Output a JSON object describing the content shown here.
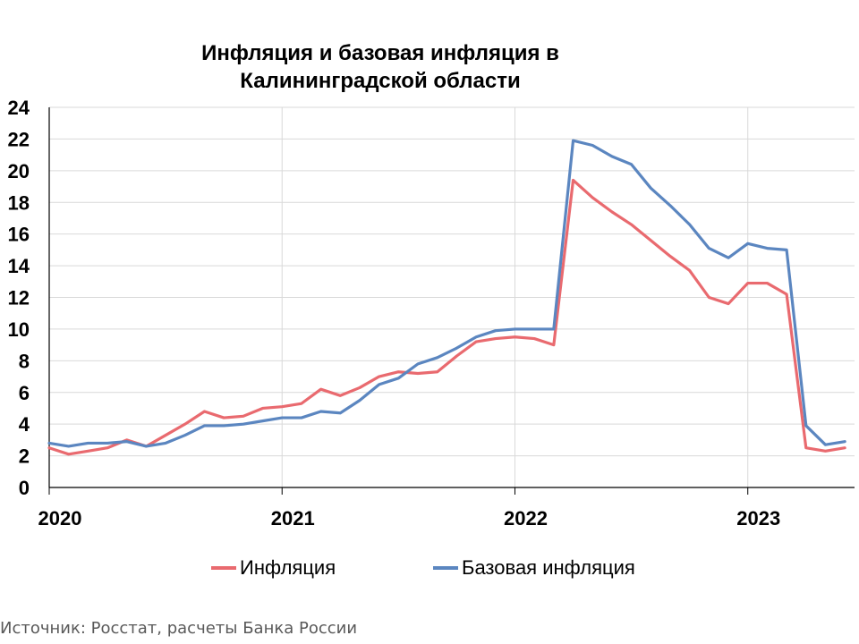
{
  "chart_data": {
    "type": "line",
    "title_line1": "Инфляция и базовая инфляция в",
    "title_line2": "Калининградской области",
    "source": "Источник: Росстат, расчеты Банка России",
    "ylim": [
      0,
      24
    ],
    "yticks": [
      0,
      2,
      4,
      6,
      8,
      10,
      12,
      14,
      16,
      18,
      20,
      22,
      24
    ],
    "xticks": [
      {
        "label": "2020",
        "pos": 0
      },
      {
        "label": "2021",
        "pos": 12
      },
      {
        "label": "2022",
        "pos": 24
      },
      {
        "label": "2023",
        "pos": 36
      }
    ],
    "x_domain": [
      0,
      41.5
    ],
    "grid": true,
    "legend_position": "bottom",
    "x": [
      "2020-01",
      "2020-02",
      "2020-03",
      "2020-04",
      "2020-05",
      "2020-06",
      "2020-07",
      "2020-08",
      "2020-09",
      "2020-10",
      "2020-11",
      "2020-12",
      "2021-01",
      "2021-02",
      "2021-03",
      "2021-04",
      "2021-05",
      "2021-06",
      "2021-07",
      "2021-08",
      "2021-09",
      "2021-10",
      "2021-11",
      "2021-12",
      "2022-01",
      "2022-02",
      "2022-03",
      "2022-04",
      "2022-05",
      "2022-06",
      "2022-07",
      "2022-08",
      "2022-09",
      "2022-10",
      "2022-11",
      "2022-12",
      "2023-01",
      "2023-02",
      "2023-03",
      "2023-04",
      "2023-05",
      "2023-06"
    ],
    "series": [
      {
        "name": "Инфляция",
        "color": "#e96a6f",
        "values": [
          2.5,
          2.1,
          2.3,
          2.5,
          3.0,
          2.6,
          3.3,
          4.0,
          4.8,
          4.4,
          4.5,
          5.0,
          5.1,
          5.3,
          6.2,
          5.8,
          6.3,
          7.0,
          7.3,
          7.2,
          7.3,
          8.3,
          9.2,
          9.4,
          9.5,
          9.4,
          9.0,
          19.4,
          18.3,
          17.4,
          16.6,
          15.6,
          14.6,
          13.7,
          12.0,
          11.6,
          12.9,
          12.9,
          12.2,
          2.5,
          2.3,
          2.5
        ]
      },
      {
        "name": "Базовая инфляция",
        "color": "#5b86c0",
        "values": [
          2.8,
          2.6,
          2.8,
          2.8,
          2.9,
          2.6,
          2.8,
          3.3,
          3.9,
          3.9,
          4.0,
          4.2,
          4.4,
          4.4,
          4.8,
          4.7,
          5.5,
          6.5,
          6.9,
          7.8,
          8.2,
          8.8,
          9.5,
          9.9,
          10.0,
          10.0,
          10.0,
          21.9,
          21.6,
          20.9,
          20.4,
          18.9,
          17.8,
          16.6,
          15.1,
          14.5,
          15.4,
          15.1,
          15.0,
          3.9,
          2.7,
          2.9
        ]
      }
    ]
  }
}
